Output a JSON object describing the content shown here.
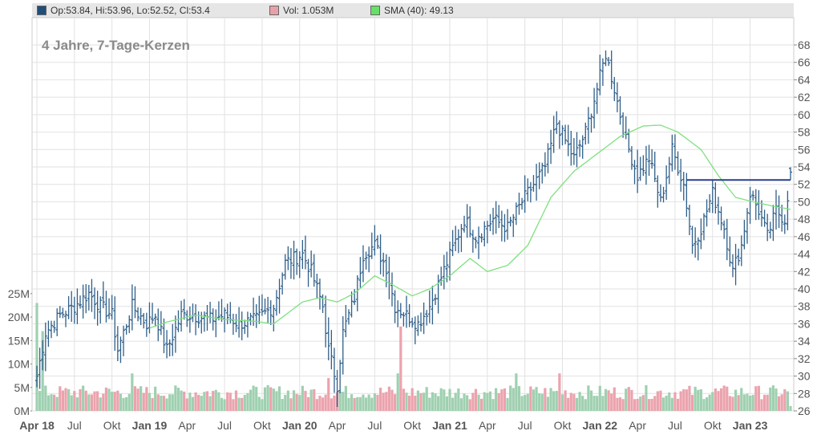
{
  "legend": [
    {
      "label": "Op:53.84, Hi:53.96, Lo:52.52, Cl:53.4",
      "color": "#1f4e79"
    },
    {
      "label": "Vol: 1.053M",
      "color": "#e8a0a8"
    },
    {
      "label": "SMA (40): 49.13",
      "color": "#66e066"
    }
  ],
  "chart_data": {
    "type": "ohlc",
    "title": "4 Jahre, 7-Tage-Kerzen",
    "price_axis": {
      "min": 26,
      "max": 68,
      "ticks": [
        26,
        28,
        30,
        32,
        34,
        36,
        38,
        40,
        42,
        44,
        46,
        48,
        50,
        52,
        54,
        56,
        58,
        60,
        62,
        64,
        66,
        68
      ]
    },
    "volume_axis": {
      "ticks": [
        "0M",
        "5M",
        "10M",
        "15M",
        "20M",
        "25M"
      ],
      "values": [
        0,
        5,
        10,
        15,
        20,
        25
      ],
      "max_million": 26
    },
    "x_labels": [
      "Apr 18",
      "Jul",
      "Okt",
      "Jan 19",
      "Apr",
      "Jul",
      "Okt",
      "Jan 20",
      "Apr",
      "Jul",
      "Okt",
      "Jan 21",
      "Apr",
      "Jul",
      "Okt",
      "Jan 22",
      "Apr",
      "Jul",
      "Okt",
      "Jan 23"
    ],
    "x_bold": [
      true,
      false,
      false,
      true,
      false,
      false,
      false,
      true,
      false,
      false,
      false,
      true,
      false,
      false,
      false,
      true,
      false,
      false,
      false,
      true
    ],
    "x_week_index": [
      0,
      13,
      26,
      39,
      52,
      65,
      78,
      91,
      104,
      117,
      130,
      143,
      156,
      169,
      182,
      195,
      208,
      221,
      234,
      247
    ],
    "close_keypoints": [
      [
        0,
        30
      ],
      [
        3,
        35
      ],
      [
        8,
        37
      ],
      [
        13,
        38
      ],
      [
        18,
        39.5
      ],
      [
        22,
        38
      ],
      [
        26,
        37
      ],
      [
        28,
        33
      ],
      [
        33,
        38
      ],
      [
        38,
        36
      ],
      [
        41,
        37
      ],
      [
        45,
        33
      ],
      [
        50,
        37
      ],
      [
        54,
        37
      ],
      [
        60,
        36.5
      ],
      [
        65,
        37
      ],
      [
        70,
        36
      ],
      [
        76,
        36.5
      ],
      [
        82,
        38
      ],
      [
        86,
        43
      ],
      [
        92,
        44
      ],
      [
        95,
        42
      ],
      [
        99,
        38
      ],
      [
        101,
        33
      ],
      [
        104,
        29
      ],
      [
        106,
        35
      ],
      [
        110,
        39
      ],
      [
        113,
        44
      ],
      [
        117,
        45
      ],
      [
        121,
        42.5
      ],
      [
        124,
        38
      ],
      [
        128,
        37
      ],
      [
        132,
        36
      ],
      [
        136,
        38
      ],
      [
        142,
        43
      ],
      [
        148,
        48
      ],
      [
        152,
        46
      ],
      [
        158,
        48
      ],
      [
        163,
        47
      ],
      [
        168,
        50
      ],
      [
        172,
        52
      ],
      [
        176,
        54
      ],
      [
        180,
        59
      ],
      [
        186,
        55
      ],
      [
        190,
        58
      ],
      [
        194,
        63
      ],
      [
        197,
        67
      ],
      [
        200,
        63
      ],
      [
        204,
        57
      ],
      [
        208,
        53
      ],
      [
        212,
        55
      ],
      [
        216,
        50
      ],
      [
        220,
        56
      ],
      [
        224,
        52
      ],
      [
        227,
        45
      ],
      [
        230,
        47
      ],
      [
        234,
        51
      ],
      [
        238,
        47
      ],
      [
        241,
        42
      ],
      [
        244,
        45
      ],
      [
        247,
        51
      ],
      [
        250,
        49
      ],
      [
        253,
        46
      ],
      [
        256,
        49
      ],
      [
        259,
        48
      ],
      [
        261,
        53.4
      ]
    ],
    "ohlc_last": {
      "open": 53.84,
      "high": 53.96,
      "low": 52.52,
      "close": 53.4
    },
    "volume_last_million": 1.053,
    "sma_period": 40,
    "sma_last": 49.13,
    "sma_keypoints": [
      [
        39,
        35.5
      ],
      [
        45,
        36.2
      ],
      [
        55,
        37
      ],
      [
        65,
        36.5
      ],
      [
        75,
        36.3
      ],
      [
        82,
        36
      ],
      [
        88,
        37.5
      ],
      [
        92,
        38.5
      ],
      [
        98,
        39
      ],
      [
        104,
        38.5
      ],
      [
        110,
        39.5
      ],
      [
        117,
        41.5
      ],
      [
        123,
        40.5
      ],
      [
        130,
        39.2
      ],
      [
        136,
        40
      ],
      [
        143,
        41.5
      ],
      [
        150,
        43.5
      ],
      [
        156,
        42
      ],
      [
        163,
        42.7
      ],
      [
        170,
        45
      ],
      [
        178,
        50.5
      ],
      [
        186,
        53.5
      ],
      [
        194,
        55.5
      ],
      [
        202,
        57.5
      ],
      [
        210,
        58.7
      ],
      [
        216,
        58.8
      ],
      [
        222,
        58
      ],
      [
        230,
        56
      ],
      [
        236,
        53
      ],
      [
        242,
        50.5
      ],
      [
        248,
        50
      ],
      [
        255,
        49.5
      ],
      [
        261,
        49.13
      ]
    ],
    "volume_spikes_million": [
      [
        0,
        23
      ],
      [
        2,
        17
      ],
      [
        33,
        8
      ],
      [
        101,
        7
      ],
      [
        125,
        8
      ],
      [
        126,
        18
      ],
      [
        166,
        8
      ],
      [
        181,
        8
      ]
    ],
    "horizontal_line": {
      "value": 52.5,
      "from_week": 225,
      "to_week": 261,
      "color": "#2a3f8f"
    },
    "grid": true
  }
}
